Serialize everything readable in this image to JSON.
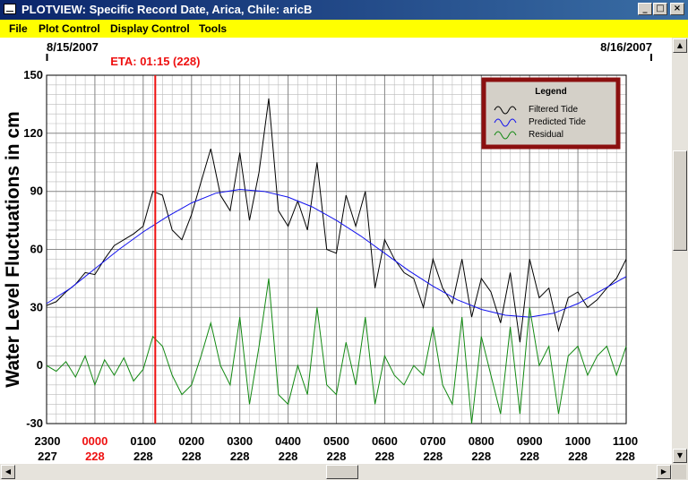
{
  "window": {
    "title": "PLOTVIEW: Specific Record Date, Arica, Chile: aricB"
  },
  "window_buttons": {
    "minimize": "_",
    "maximize": "□",
    "close": "×"
  },
  "menu": [
    "File",
    "Plot Control",
    "Display Control",
    "Tools"
  ],
  "scroll": {
    "up": "▲",
    "down": "▼",
    "left": "◀",
    "right": "▶"
  },
  "chart_data": {
    "type": "line",
    "date_left": "8/15/2007",
    "date_right": "8/16/2007",
    "eta_label": "ETA: 01:15 (228)",
    "eta_x": 1.25,
    "ylabel": "Water Level Fluctuations in cm",
    "ylim": [
      -30,
      150
    ],
    "xlim": [
      -1,
      11
    ],
    "y_ticks": [
      150,
      120,
      90,
      60,
      30,
      0,
      -30
    ],
    "x_ticks": [
      {
        "x": -1,
        "time": "2300",
        "day": "227",
        "highlight": false
      },
      {
        "x": 0,
        "time": "0000",
        "day": "228",
        "highlight": true
      },
      {
        "x": 1,
        "time": "0100",
        "day": "228",
        "highlight": false
      },
      {
        "x": 2,
        "time": "0200",
        "day": "228",
        "highlight": false
      },
      {
        "x": 3,
        "time": "0300",
        "day": "228",
        "highlight": false
      },
      {
        "x": 4,
        "time": "0400",
        "day": "228",
        "highlight": false
      },
      {
        "x": 5,
        "time": "0500",
        "day": "228",
        "highlight": false
      },
      {
        "x": 6,
        "time": "0600",
        "day": "228",
        "highlight": false
      },
      {
        "x": 7,
        "time": "0700",
        "day": "228",
        "highlight": false
      },
      {
        "x": 8,
        "time": "0800",
        "day": "228",
        "highlight": false
      },
      {
        "x": 9,
        "time": "0900",
        "day": "228",
        "highlight": false
      },
      {
        "x": 10,
        "time": "1000",
        "day": "228",
        "highlight": false
      },
      {
        "x": 11,
        "time": "1100",
        "day": "228",
        "highlight": false
      }
    ],
    "grid": true,
    "legend": {
      "title": "Legend",
      "placement": "top-right"
    },
    "colors": {
      "eta": "#ee1111",
      "highlight_tick": "#ee1111",
      "legend_border": "#8b1010"
    },
    "series": [
      {
        "name": "Filtered Tide",
        "color": "#000000",
        "x": [
          -1.0,
          -0.8,
          -0.6,
          -0.4,
          -0.2,
          0.0,
          0.2,
          0.4,
          0.6,
          0.8,
          1.0,
          1.2,
          1.4,
          1.6,
          1.8,
          2.0,
          2.2,
          2.4,
          2.6,
          2.8,
          3.0,
          3.2,
          3.4,
          3.6,
          3.8,
          4.0,
          4.2,
          4.4,
          4.6,
          4.8,
          5.0,
          5.2,
          5.4,
          5.6,
          5.8,
          6.0,
          6.2,
          6.4,
          6.6,
          6.8,
          7.0,
          7.2,
          7.4,
          7.6,
          7.8,
          8.0,
          8.2,
          8.4,
          8.6,
          8.8,
          9.0,
          9.2,
          9.4,
          9.6,
          9.8,
          10.0,
          10.2,
          10.4,
          10.6,
          10.8,
          11.0
        ],
        "y": [
          31,
          33,
          38,
          42,
          48,
          47,
          55,
          62,
          65,
          68,
          72,
          90,
          88,
          70,
          65,
          78,
          95,
          112,
          88,
          80,
          110,
          75,
          100,
          138,
          80,
          72,
          85,
          70,
          105,
          60,
          58,
          88,
          72,
          90,
          40,
          65,
          55,
          48,
          45,
          30,
          55,
          40,
          32,
          55,
          25,
          45,
          38,
          22,
          48,
          12,
          55,
          35,
          40,
          18,
          35,
          38,
          30,
          34,
          40,
          45,
          55
        ]
      },
      {
        "name": "Predicted Tide",
        "color": "#1111ee",
        "x": [
          -1.0,
          -0.5,
          0.0,
          0.5,
          1.0,
          1.5,
          2.0,
          2.5,
          3.0,
          3.5,
          4.0,
          4.5,
          5.0,
          5.5,
          6.0,
          6.5,
          7.0,
          7.5,
          8.0,
          8.5,
          9.0,
          9.5,
          10.0,
          10.5,
          11.0
        ],
        "y": [
          32,
          40,
          50,
          60,
          69,
          77,
          84,
          89,
          91,
          90,
          87,
          82,
          75,
          67,
          58,
          49,
          41,
          34,
          29,
          26,
          25,
          27,
          32,
          39,
          46
        ]
      },
      {
        "name": "Residual",
        "color": "#118811",
        "x": [
          -1.0,
          -0.8,
          -0.6,
          -0.4,
          -0.2,
          0.0,
          0.2,
          0.4,
          0.6,
          0.8,
          1.0,
          1.2,
          1.4,
          1.6,
          1.8,
          2.0,
          2.2,
          2.4,
          2.6,
          2.8,
          3.0,
          3.2,
          3.4,
          3.6,
          3.8,
          4.0,
          4.2,
          4.4,
          4.6,
          4.8,
          5.0,
          5.2,
          5.4,
          5.6,
          5.8,
          6.0,
          6.2,
          6.4,
          6.6,
          6.8,
          7.0,
          7.2,
          7.4,
          7.6,
          7.8,
          8.0,
          8.2,
          8.4,
          8.6,
          8.8,
          9.0,
          9.2,
          9.4,
          9.6,
          9.8,
          10.0,
          10.2,
          10.4,
          10.6,
          10.8,
          11.0
        ],
        "y": [
          0,
          -3,
          2,
          -6,
          5,
          -10,
          3,
          -5,
          4,
          -8,
          -2,
          15,
          10,
          -5,
          -15,
          -10,
          5,
          22,
          0,
          -10,
          25,
          -20,
          10,
          45,
          -15,
          -20,
          0,
          -15,
          30,
          -10,
          -15,
          12,
          -10,
          25,
          -20,
          5,
          -5,
          -10,
          0,
          -5,
          20,
          -10,
          -20,
          25,
          -30,
          15,
          -5,
          -25,
          20,
          -25,
          30,
          0,
          10,
          -25,
          5,
          10,
          -5,
          5,
          10,
          -5,
          10
        ]
      }
    ]
  }
}
